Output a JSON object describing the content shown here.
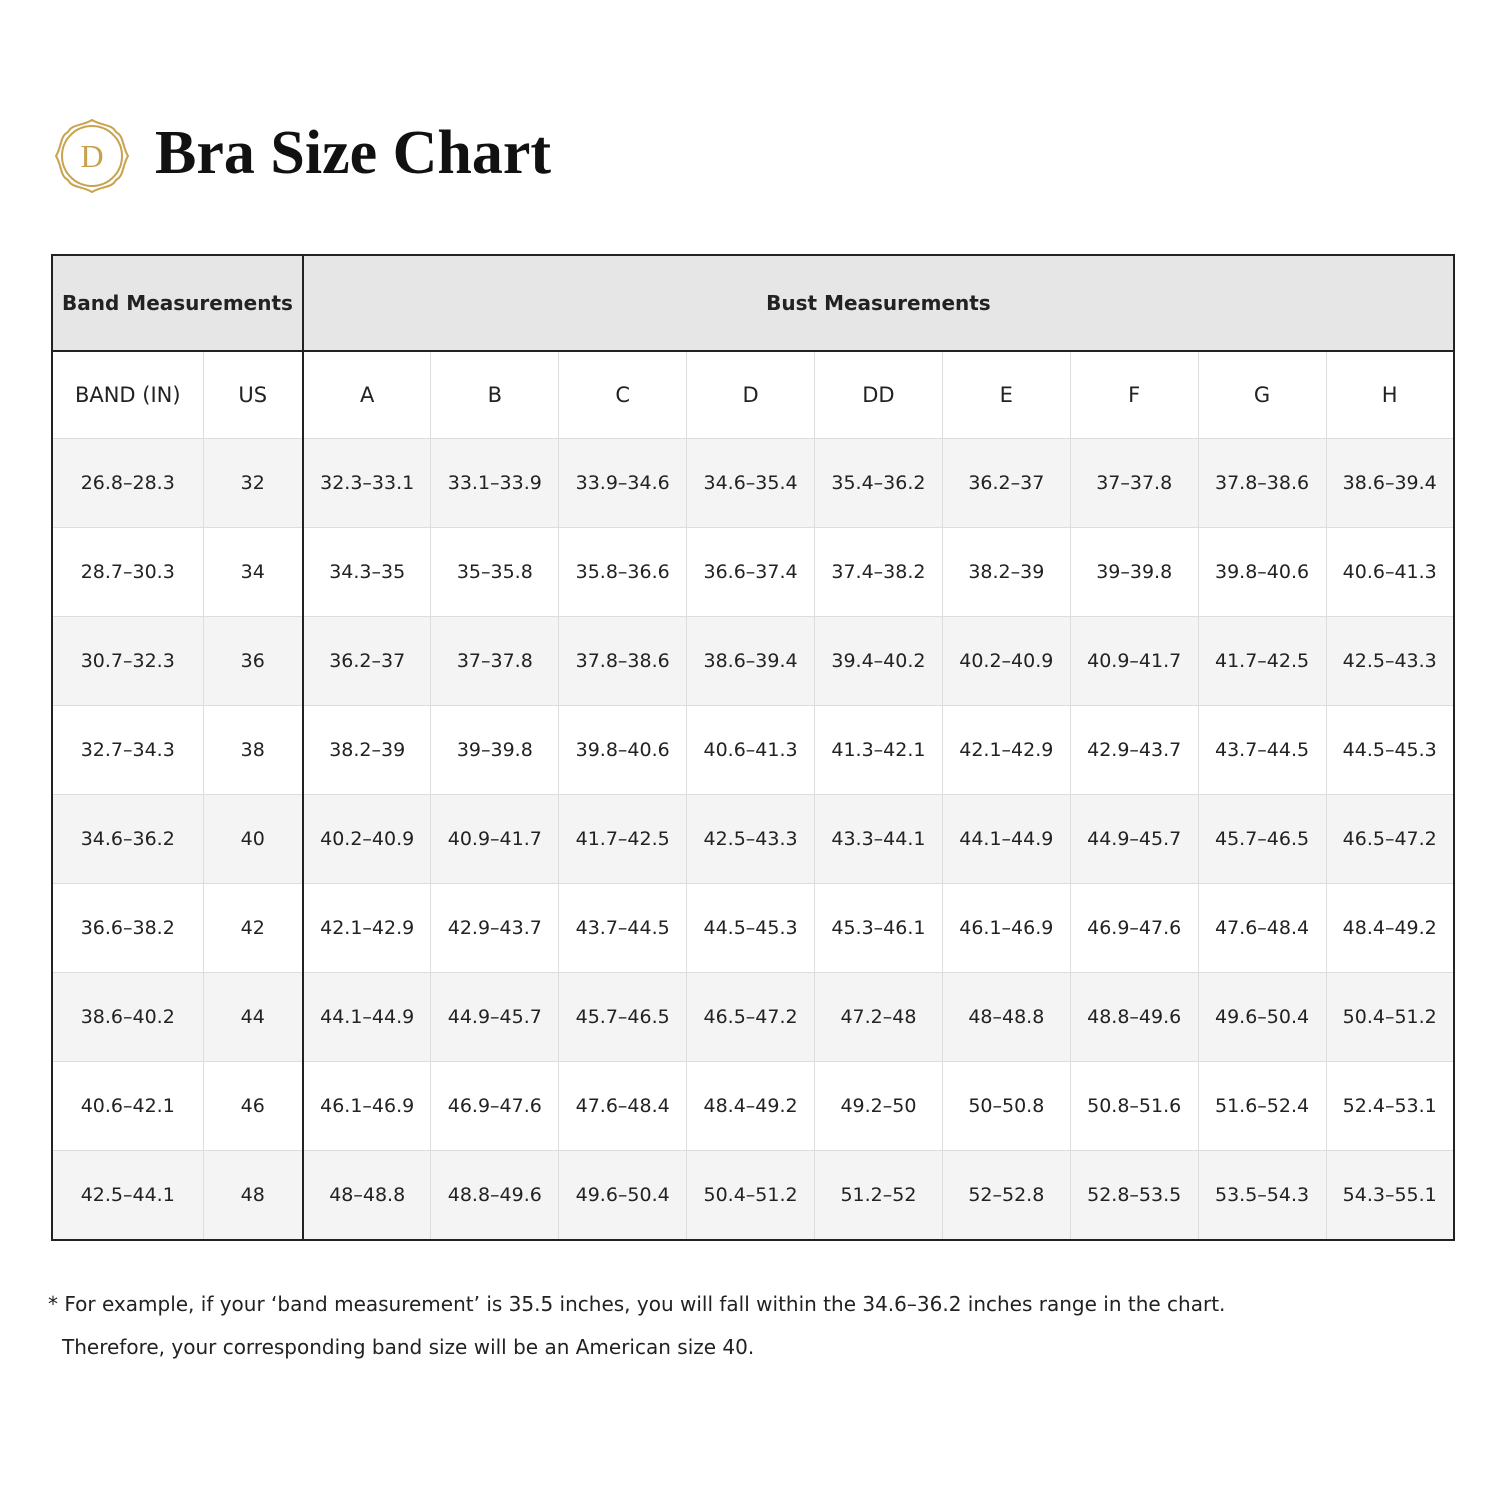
{
  "header": {
    "logo_letter": "D",
    "title": "Bra Size Chart"
  },
  "table": {
    "group_headers": [
      "Band Measurements",
      "Bust Measurements"
    ],
    "columns": [
      "BAND (IN)",
      "US",
      "A",
      "B",
      "C",
      "D",
      "DD",
      "E",
      "F",
      "G",
      "H"
    ],
    "rows": [
      [
        "26.8–28.3",
        "32",
        "32.3–33.1",
        "33.1–33.9",
        "33.9–34.6",
        "34.6–35.4",
        "35.4–36.2",
        "36.2–37",
        "37–37.8",
        "37.8–38.6",
        "38.6–39.4"
      ],
      [
        "28.7–30.3",
        "34",
        "34.3–35",
        "35–35.8",
        "35.8–36.6",
        "36.6–37.4",
        "37.4–38.2",
        "38.2–39",
        "39–39.8",
        "39.8–40.6",
        "40.6–41.3"
      ],
      [
        "30.7–32.3",
        "36",
        "36.2–37",
        "37–37.8",
        "37.8–38.6",
        "38.6–39.4",
        "39.4–40.2",
        "40.2–40.9",
        "40.9–41.7",
        "41.7–42.5",
        "42.5–43.3"
      ],
      [
        "32.7–34.3",
        "38",
        "38.2–39",
        "39–39.8",
        "39.8–40.6",
        "40.6–41.3",
        "41.3–42.1",
        "42.1–42.9",
        "42.9–43.7",
        "43.7–44.5",
        "44.5–45.3"
      ],
      [
        "34.6–36.2",
        "40",
        "40.2–40.9",
        "40.9–41.7",
        "41.7–42.5",
        "42.5–43.3",
        "43.3–44.1",
        "44.1–44.9",
        "44.9–45.7",
        "45.7–46.5",
        "46.5–47.2"
      ],
      [
        "36.6–38.2",
        "42",
        "42.1–42.9",
        "42.9–43.7",
        "43.7–44.5",
        "44.5–45.3",
        "45.3–46.1",
        "46.1–46.9",
        "46.9–47.6",
        "47.6–48.4",
        "48.4–49.2"
      ],
      [
        "38.6–40.2",
        "44",
        "44.1–44.9",
        "44.9–45.7",
        "45.7–46.5",
        "46.5–47.2",
        "47.2–48",
        "48–48.8",
        "48.8–49.6",
        "49.6–50.4",
        "50.4–51.2"
      ],
      [
        "40.6–42.1",
        "46",
        "46.1–46.9",
        "46.9–47.6",
        "47.6–48.4",
        "48.4–49.2",
        "49.2–50",
        "50–50.8",
        "50.8–51.6",
        "51.6–52.4",
        "52.4–53.1"
      ],
      [
        "42.5–44.1",
        "48",
        "48–48.8",
        "48.8–49.6",
        "49.6–50.4",
        "50.4–51.2",
        "51.2–52",
        "52–52.8",
        "52.8–53.5",
        "53.5–54.3",
        "54.3–55.1"
      ]
    ]
  },
  "footnote": [
    "* For example, if your ‘band measurement’ is 35.5 inches, you will fall within the 34.6–36.2 inches range in the chart.",
    "Therefore, your corresponding band size will be an American size 40."
  ]
}
